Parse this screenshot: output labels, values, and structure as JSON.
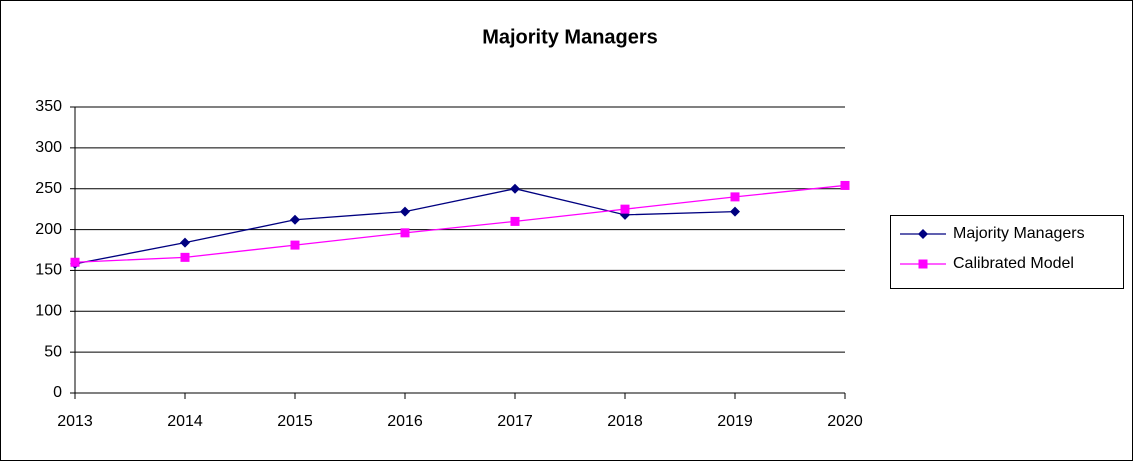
{
  "chart_data": {
    "type": "line",
    "title": "Majority Managers",
    "x": [
      2013,
      2014,
      2015,
      2016,
      2017,
      2018,
      2019,
      2020
    ],
    "series": [
      {
        "name": "Majority Managers",
        "color": "#000080",
        "marker": "diamond",
        "values": [
          158,
          184,
          212,
          222,
          250,
          218,
          222,
          null
        ]
      },
      {
        "name": "Calibrated Model",
        "color": "#ff00ff",
        "marker": "square",
        "values": [
          160,
          166,
          181,
          196,
          210,
          225,
          240,
          254
        ]
      }
    ],
    "xlim": [
      2013,
      2020
    ],
    "xticks": [
      2013,
      2014,
      2015,
      2016,
      2017,
      2018,
      2019,
      2020
    ],
    "ylim": [
      0,
      350
    ],
    "yticks": [
      0,
      50,
      100,
      150,
      200,
      250,
      300,
      350
    ],
    "grid": true,
    "legend": "right"
  }
}
